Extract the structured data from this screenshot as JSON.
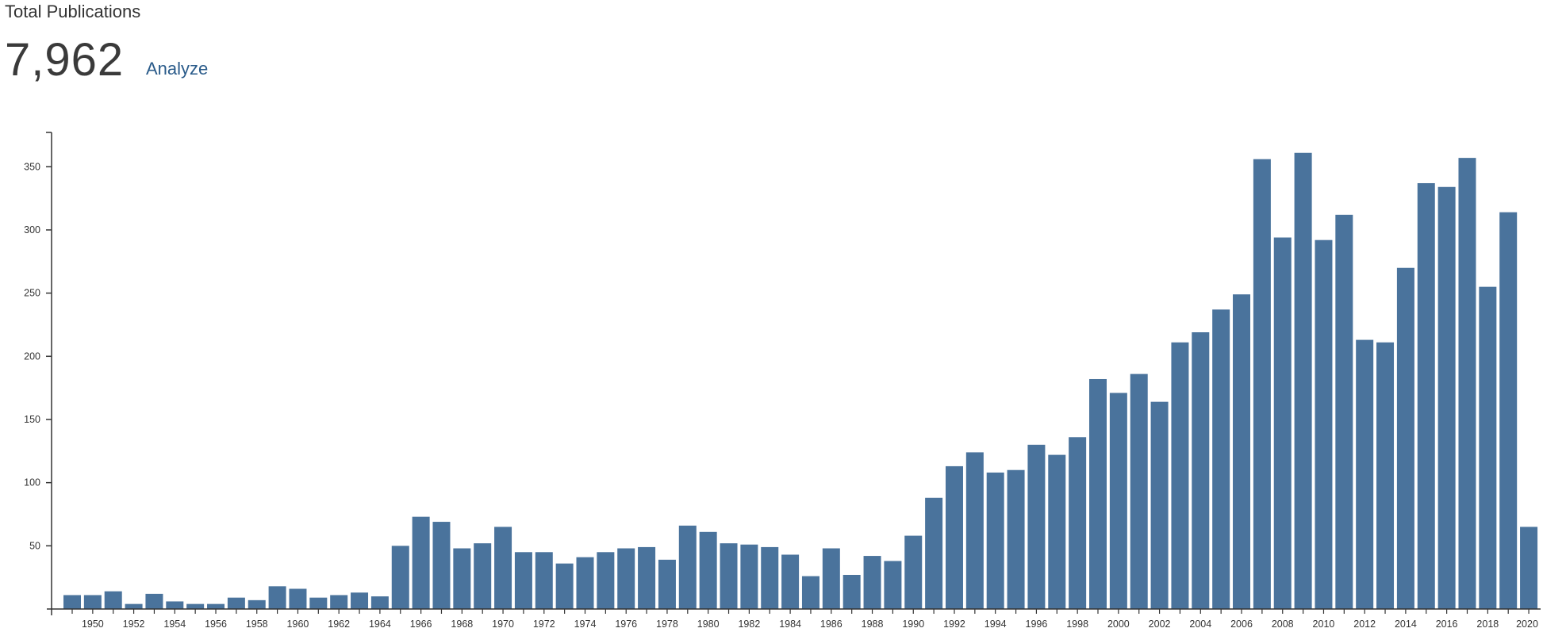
{
  "header": {
    "title": "Total Publications",
    "total": "7,962",
    "analyze_label": "Analyze"
  },
  "chart_data": {
    "type": "bar",
    "title": "",
    "xlabel": "",
    "ylabel": "",
    "bar_color": "#4a739c",
    "ylim": [
      0,
      370
    ],
    "y_ticks": [
      50,
      100,
      150,
      200,
      250,
      300,
      350
    ],
    "categories": [
      1949,
      1950,
      1951,
      1952,
      1953,
      1954,
      1955,
      1956,
      1957,
      1958,
      1959,
      1960,
      1961,
      1962,
      1963,
      1964,
      1965,
      1966,
      1967,
      1968,
      1969,
      1970,
      1971,
      1972,
      1973,
      1974,
      1975,
      1976,
      1977,
      1978,
      1979,
      1980,
      1981,
      1982,
      1983,
      1984,
      1985,
      1986,
      1987,
      1988,
      1989,
      1990,
      1991,
      1992,
      1993,
      1994,
      1995,
      1996,
      1997,
      1998,
      1999,
      2000,
      2001,
      2002,
      2003,
      2004,
      2005,
      2006,
      2007,
      2008,
      2009,
      2010,
      2011,
      2012,
      2013,
      2014,
      2015,
      2016,
      2017,
      2018,
      2019,
      2020
    ],
    "values": [
      11,
      11,
      14,
      4,
      12,
      6,
      4,
      4,
      9,
      7,
      18,
      16,
      9,
      11,
      13,
      10,
      50,
      73,
      69,
      48,
      52,
      65,
      45,
      45,
      36,
      41,
      45,
      48,
      49,
      39,
      66,
      61,
      52,
      51,
      49,
      43,
      26,
      48,
      27,
      42,
      38,
      58,
      88,
      113,
      124,
      108,
      110,
      130,
      122,
      136,
      182,
      171,
      186,
      164,
      211,
      219,
      237,
      249,
      356,
      294,
      361,
      292,
      312,
      213,
      211,
      270,
      337,
      334,
      357,
      255,
      314,
      65
    ],
    "x_tick_labels": [
      "1950",
      "1952",
      "1954",
      "1956",
      "1958",
      "1960",
      "1962",
      "1964",
      "1966",
      "1968",
      "1970",
      "1972",
      "1974",
      "1976",
      "1978",
      "1980",
      "1982",
      "1984",
      "1986",
      "1988",
      "1990",
      "1992",
      "1994",
      "1996",
      "1998",
      "2000",
      "2002",
      "2004",
      "2006",
      "2008",
      "2010",
      "2012",
      "2014",
      "2016",
      "2018",
      "2020"
    ]
  }
}
